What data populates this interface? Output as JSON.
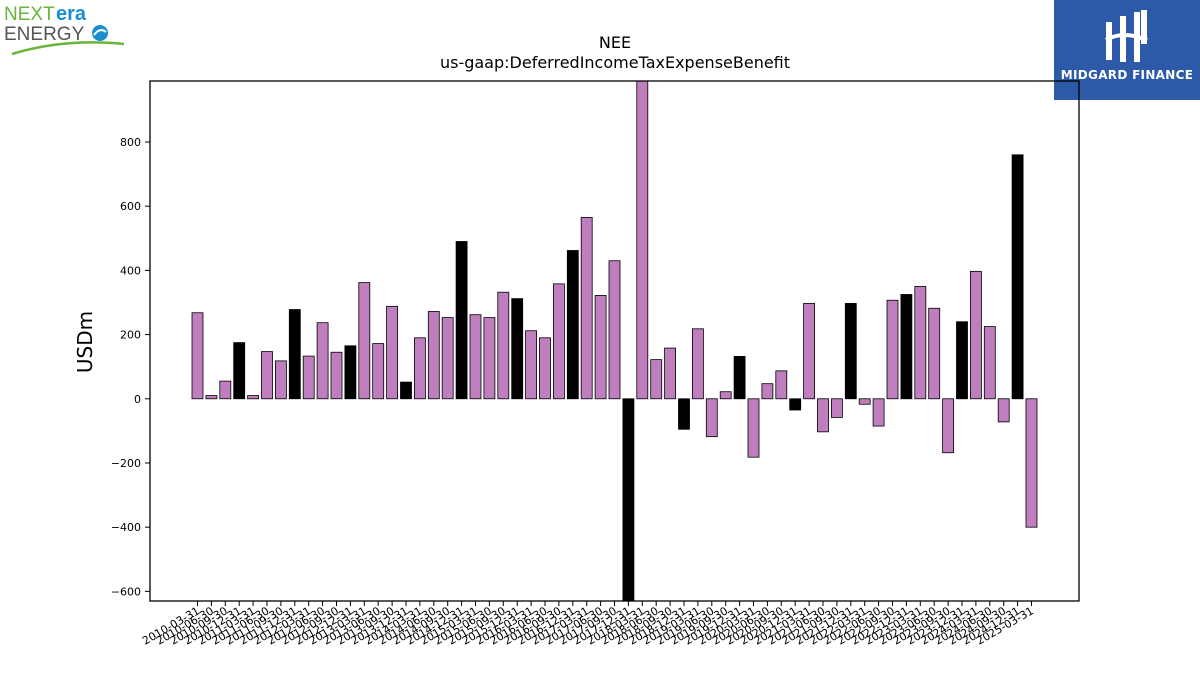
{
  "logos": {
    "left_line1_a": "NEXT",
    "left_line1_b": "era",
    "left_line2": "ENERGY",
    "right_name": "MIDGARD FINANCE"
  },
  "colors": {
    "bar_default": "#bf7fbf",
    "bar_highlight": "#000000",
    "nextera_green": "#6ab43e",
    "nextera_blue": "#1a8ecf",
    "midgard_blue": "#2c5aa8"
  },
  "chart_data": {
    "type": "bar",
    "title": "NEE",
    "subtitle": "us-gaap:DeferredIncomeTaxExpenseBenefit",
    "xlabel": "",
    "ylabel": "USDm",
    "ylim": [
      -630,
      990
    ],
    "yticks": [
      -600,
      -400,
      -200,
      0,
      200,
      400,
      600,
      800
    ],
    "grid": false,
    "categories": [
      "2010-03-31",
      "2010-06-30",
      "2010-09-30",
      "2010-12-31",
      "2011-03-31",
      "2011-06-30",
      "2011-09-30",
      "2011-12-31",
      "2012-03-31",
      "2012-06-30",
      "2012-09-30",
      "2012-12-31",
      "2013-03-31",
      "2013-06-30",
      "2013-09-30",
      "2013-12-31",
      "2014-03-31",
      "2014-06-30",
      "2014-09-30",
      "2014-12-31",
      "2015-03-31",
      "2015-06-30",
      "2015-09-30",
      "2015-12-31",
      "2016-03-31",
      "2016-06-30",
      "2016-09-30",
      "2016-12-31",
      "2017-03-31",
      "2017-06-30",
      "2017-09-30",
      "2017-12-31",
      "2018-03-31",
      "2018-06-30",
      "2018-09-30",
      "2018-12-31",
      "2019-03-31",
      "2019-06-30",
      "2019-09-30",
      "2019-12-31",
      "2020-03-31",
      "2020-06-30",
      "2020-09-30",
      "2020-12-31",
      "2021-03-31",
      "2021-06-30",
      "2021-09-30",
      "2021-12-31",
      "2022-03-31",
      "2022-06-30",
      "2022-09-30",
      "2022-12-31",
      "2023-03-31",
      "2023-06-30",
      "2023-09-30",
      "2023-12-31",
      "2024-03-31",
      "2024-06-30",
      "2024-09-30",
      "2024-12-31",
      "2025-03-31"
    ],
    "values": [
      268,
      10,
      55,
      175,
      10,
      147,
      118,
      278,
      133,
      237,
      145,
      165,
      362,
      172,
      288,
      52,
      190,
      272,
      253,
      490,
      262,
      253,
      332,
      312,
      212,
      190,
      358,
      462,
      565,
      322,
      430,
      -640,
      1000,
      122,
      158,
      -95,
      218,
      -118,
      22,
      132,
      -182,
      47,
      87,
      -35,
      297,
      -103,
      -58,
      297,
      -17,
      -85,
      307,
      325,
      350,
      282,
      -168,
      240,
      397,
      225,
      -72,
      760,
      -400
    ],
    "highlight": [
      false,
      false,
      false,
      true,
      false,
      false,
      false,
      true,
      false,
      false,
      false,
      true,
      false,
      false,
      false,
      true,
      false,
      false,
      false,
      true,
      false,
      false,
      false,
      true,
      false,
      false,
      false,
      true,
      false,
      false,
      false,
      true,
      false,
      false,
      false,
      true,
      false,
      false,
      false,
      true,
      false,
      false,
      false,
      true,
      false,
      false,
      false,
      true,
      false,
      false,
      false,
      true,
      false,
      false,
      false,
      true,
      false,
      false,
      false,
      true,
      false
    ],
    "tick_labels_shown": [
      "2010-03-31",
      "2010-06-30",
      "2010-09-30",
      "2010-12-31",
      "2011-03-31",
      "2011-06-30",
      "2011-09-30",
      "2011-12-31",
      "2012-03-31",
      "2012-06-30",
      "2012-09-30",
      "2012-12-31",
      "2013-03-31",
      "2013-06-30",
      "2013-09-30",
      "2013-12-31",
      "2014-03-31",
      "2014-06-30",
      "2014-09-30",
      "2014-12-31",
      "2015-03-31",
      "2015-06-30",
      "2015-09-30",
      "2015-12-31",
      "2016-03-31",
      "2016-06-30",
      "2016-09-30",
      "2016-12-31",
      "2017-03-31",
      "2017-06-30",
      "2017-09-30",
      "2017-12-31",
      "2018-03-31",
      "2018-06-30",
      "2018-09-30",
      "2018-12-31",
      "2019-03-31",
      "2019-06-30",
      "2019-09-30",
      "2019-12-31",
      "2020-03-31",
      "2020-06-30",
      "2020-09-30",
      "2020-12-31",
      "2021-03-31",
      "2021-06-30",
      "2021-09-30",
      "2021-12-31",
      "2022-03-31",
      "2022-06-30",
      "2022-09-30",
      "2022-12-31",
      "2023-03-31",
      "2023-06-30",
      "2023-09-30",
      "2023-12-31",
      "2024-03-31",
      "2024-06-30",
      "2024-09-30",
      "2024-12-31",
      "2025-03-31"
    ]
  }
}
